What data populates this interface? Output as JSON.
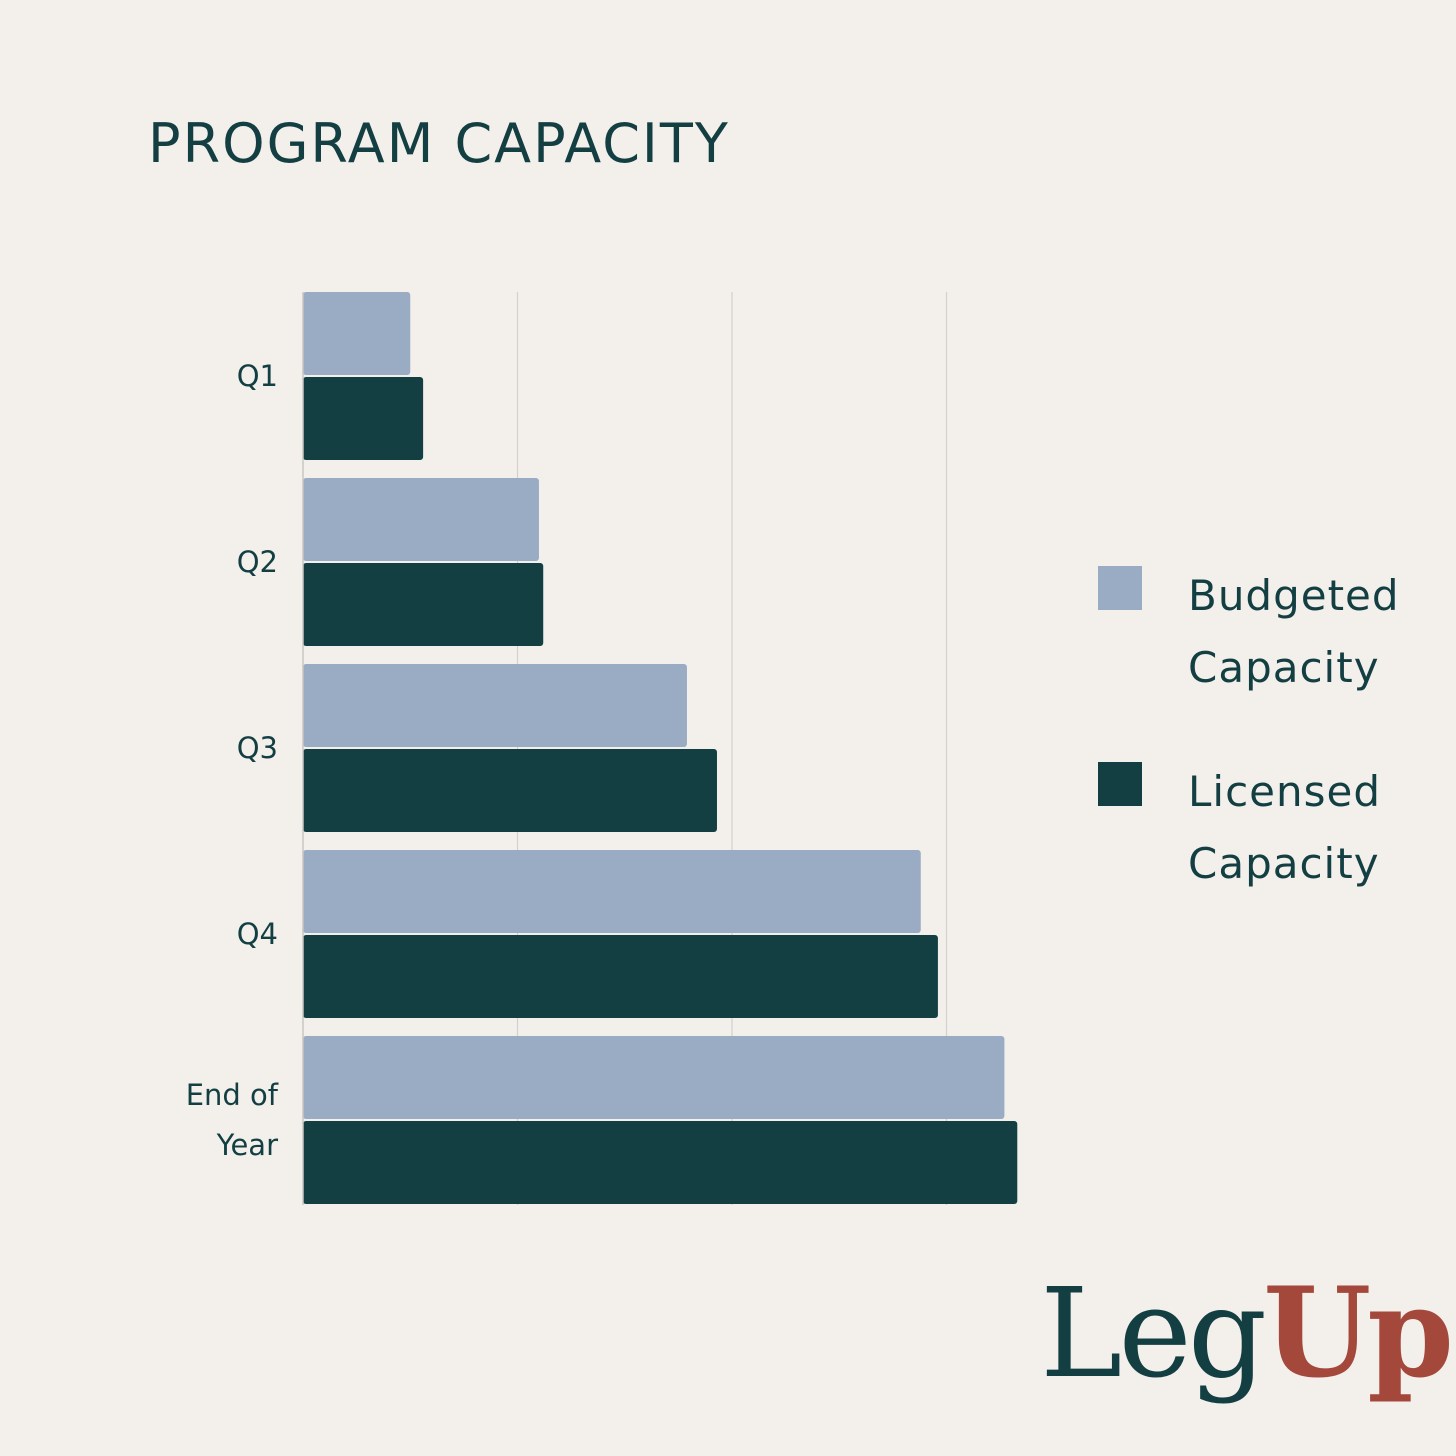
{
  "title": "PROGRAM CAPACITY",
  "colors": {
    "background": "#f3f0ec",
    "budgeted": "#9aabc4",
    "licensed": "#143f42",
    "text": "#143f42",
    "grid": "#d3cfcc",
    "logo_accent": "#a5483c"
  },
  "legend": {
    "budgeted_line1": "Budgeted",
    "budgeted_line2": "Capacity",
    "licensed_line1": "Licensed",
    "licensed_line2": "Capacity"
  },
  "logo": {
    "part1": "Leg",
    "part2": "Up"
  },
  "chart_data": {
    "type": "bar",
    "orientation": "horizontal",
    "title": "PROGRAM CAPACITY",
    "categories": [
      [
        "Q1"
      ],
      [
        "Q2"
      ],
      [
        "Q3"
      ],
      [
        "Q4"
      ],
      [
        "End of",
        "Year"
      ]
    ],
    "series": [
      {
        "name": "Budgeted Capacity",
        "values": [
          0.5,
          1.1,
          1.79,
          2.88,
          3.27
        ]
      },
      {
        "name": "Licensed Capacity",
        "values": [
          0.56,
          1.12,
          1.93,
          2.96,
          3.33
        ]
      }
    ],
    "xlim": [
      0,
      3.4
    ],
    "gridlines": [
      1,
      2,
      3
    ],
    "tick_labels_shown": false,
    "grid": true,
    "legend_position": "right"
  }
}
